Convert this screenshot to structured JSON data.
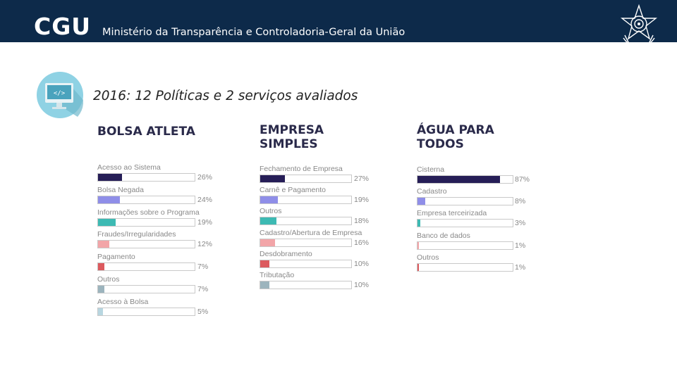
{
  "header": {
    "logo": "CGU",
    "ministry": "Ministério da Transparência e Controladoria-Geral da União"
  },
  "headline": {
    "year": "2016:",
    "text": " 12 Políticas e 2 serviços avaliados"
  },
  "chart_data": [
    {
      "type": "bar",
      "title_lines": [
        "BOLSA ATLETA"
      ],
      "bar_color_default": "#1f1a4d",
      "categories": [
        "Acesso ao Sistema",
        "Bolsa Negada",
        "Informações sobre o Programa",
        "Fraudes/Irregularidades",
        "Pagamento",
        "Outros",
        "Acesso à Bolsa"
      ],
      "values": [
        26,
        24,
        19,
        12,
        7,
        7,
        5
      ],
      "value_labels": [
        "26%",
        "24%",
        "19%",
        "12%",
        "7%",
        "7%",
        "5%"
      ],
      "colors": [
        "#261e57",
        "#8f8ee8",
        "#3dbab3",
        "#f2a5a8",
        "#dc5a5e",
        "#9cb4bd",
        "#b8d6e0"
      ],
      "unit": "%"
    },
    {
      "type": "bar",
      "title_lines": [
        "EMPRESA",
        "SIMPLES"
      ],
      "categories": [
        "Fechamento de Empresa",
        "Carnê e Pagamento",
        "Outros",
        "Cadastro/Abertura de Empresa",
        "Desdobramento",
        "Tributação"
      ],
      "values": [
        27,
        19,
        18,
        16,
        10,
        10
      ],
      "value_labels": [
        "27%",
        "19%",
        "18%",
        "16%",
        "10%",
        "10%"
      ],
      "colors": [
        "#261e57",
        "#8f8ee8",
        "#3dbab3",
        "#f2a5a8",
        "#dc5a5e",
        "#9cb4bd"
      ],
      "unit": "%"
    },
    {
      "type": "bar",
      "title_lines": [
        "ÁGUA PARA",
        "TODOS"
      ],
      "categories": [
        "Cisterna",
        "Cadastro",
        "Empresa terceirizada",
        "Banco de dados",
        "Outros"
      ],
      "values": [
        87,
        8,
        3,
        1,
        1
      ],
      "value_labels": [
        "87%",
        "8%",
        "3%",
        "1%",
        "1%"
      ],
      "colors": [
        "#261e57",
        "#8f8ee8",
        "#3dbab3",
        "#f2a5a8",
        "#dc5a5e"
      ],
      "unit": "%"
    }
  ]
}
